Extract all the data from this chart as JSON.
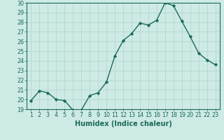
{
  "x": [
    1,
    2,
    3,
    4,
    5,
    6,
    7,
    8,
    9,
    10,
    11,
    12,
    13,
    14,
    15,
    16,
    17,
    18,
    19,
    20,
    21,
    22,
    23
  ],
  "y": [
    19.9,
    20.9,
    20.7,
    20.0,
    19.9,
    18.9,
    18.9,
    20.4,
    20.7,
    21.8,
    24.5,
    26.1,
    26.8,
    27.9,
    27.7,
    28.2,
    30.0,
    29.7,
    28.1,
    26.5,
    24.8,
    24.1,
    23.6
  ],
  "line_color": "#1a6b5a",
  "marker": "D",
  "marker_size": 2.2,
  "bg_color": "#ceeae4",
  "grid_color": "#aed4cc",
  "xlabel": "Humidex (Indice chaleur)",
  "ylim": [
    19,
    30
  ],
  "xlim_min": 0.5,
  "xlim_max": 23.5,
  "yticks": [
    19,
    20,
    21,
    22,
    23,
    24,
    25,
    26,
    27,
    28,
    29,
    30
  ],
  "xticks": [
    1,
    2,
    3,
    4,
    5,
    6,
    7,
    8,
    9,
    10,
    11,
    12,
    13,
    14,
    15,
    16,
    17,
    18,
    19,
    20,
    21,
    22,
    23
  ],
  "tick_color": "#1a6b5a",
  "label_color": "#1a6b5a",
  "xlabel_fontsize": 7,
  "tick_fontsize": 5.8,
  "linewidth": 1.0
}
